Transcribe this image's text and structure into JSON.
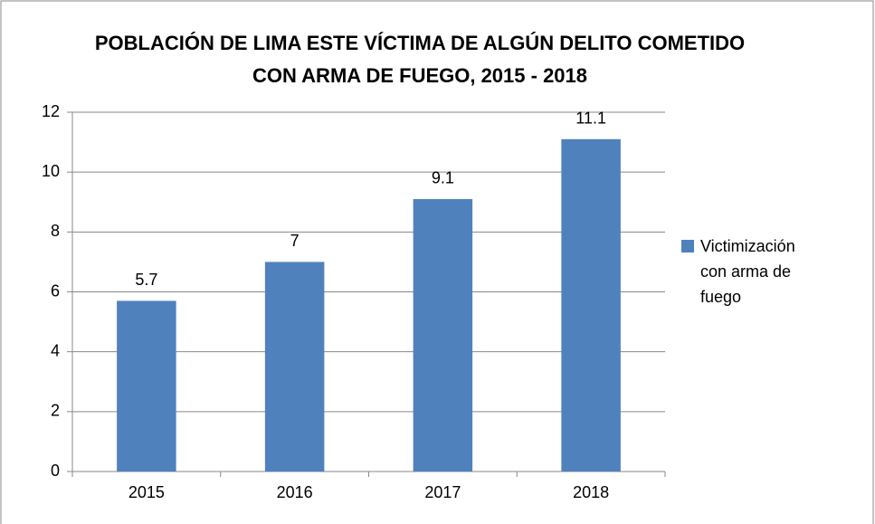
{
  "chart_data": {
    "type": "bar",
    "title": "POBLACIÓN DE LIMA ESTE VÍCTIMA DE ALGÚN DELITO COMETIDO CON ARMA DE FUEGO, 2015 - 2018",
    "categories": [
      "2015",
      "2016",
      "2017",
      "2018"
    ],
    "series": [
      {
        "name": "Victimización con arma de fuego",
        "color": "#4f81bd",
        "values": [
          5.7,
          7,
          9.1,
          11.1
        ]
      }
    ],
    "ylim": [
      0,
      12
    ],
    "yticks": [
      0,
      2,
      4,
      6,
      8,
      10,
      12
    ],
    "grid": true,
    "legend": "right"
  }
}
